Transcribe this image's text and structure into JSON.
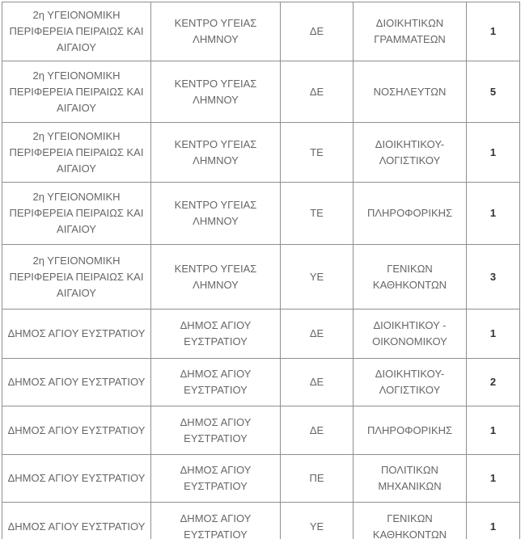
{
  "colors": {
    "background": "#ffffff",
    "border": "#8f8f8f",
    "text": "#666666",
    "count_text": "#333333"
  },
  "table": {
    "column_keys": [
      "region",
      "body",
      "category",
      "specialty",
      "count"
    ],
    "rows": [
      {
        "region": "2η ΥΓΕΙΟΝΟΜΙΚΗ ΠΕΡΙΦΕΡΕΙΑ ΠΕΙΡΑΙΩΣ ΚΑΙ ΑΙΓΑΙΟΥ",
        "body": "ΚΕΝΤΡΟ ΥΓΕΙΑΣ ΛΗΜΝΟΥ",
        "category": "ΔΕ",
        "specialty": "ΔΙΟΙΚΗΤΙΚΩΝ ΓΡΑΜΜΑΤΕΩΝ",
        "count": "1"
      },
      {
        "region": "2η ΥΓΕΙΟΝΟΜΙΚΗ ΠΕΡΙΦΕΡΕΙΑ ΠΕΙΡΑΙΩΣ ΚΑΙ ΑΙΓΑΙΟΥ",
        "body": "ΚΕΝΤΡΟ ΥΓΕΙΑΣ ΛΗΜΝΟΥ",
        "category": "ΔΕ",
        "specialty": "ΝΟΣΗΛΕΥΤΩΝ",
        "count": "5"
      },
      {
        "region": "2η ΥΓΕΙΟΝΟΜΙΚΗ ΠΕΡΙΦΕΡΕΙΑ ΠΕΙΡΑΙΩΣ ΚΑΙ ΑΙΓΑΙΟΥ",
        "body": "ΚΕΝΤΡΟ ΥΓΕΙΑΣ ΛΗΜΝΟΥ",
        "category": "ΤΕ",
        "specialty": "ΔΙΟΙΚΗΤΙΚΟΥ-ΛΟΓΙΣΤΙΚΟΥ",
        "count": "1"
      },
      {
        "region": "2η ΥΓΕΙΟΝΟΜΙΚΗ ΠΕΡΙΦΕΡΕΙΑ ΠΕΙΡΑΙΩΣ ΚΑΙ ΑΙΓΑΙΟΥ",
        "body": "ΚΕΝΤΡΟ ΥΓΕΙΑΣ ΛΗΜΝΟΥ",
        "category": "ΤΕ",
        "specialty": "ΠΛΗΡΟΦΟΡΙΚΗΣ",
        "count": "1"
      },
      {
        "region": "2η ΥΓΕΙΟΝΟΜΙΚΗ ΠΕΡΙΦΕΡΕΙΑ ΠΕΙΡΑΙΩΣ ΚΑΙ ΑΙΓΑΙΟΥ",
        "body": "ΚΕΝΤΡΟ ΥΓΕΙΑΣ ΛΗΜΝΟΥ",
        "category": "ΥΕ",
        "specialty": "ΓΕΝΙΚΩΝ ΚΑΘΗΚΟΝΤΩΝ",
        "count": "3"
      },
      {
        "region": "ΔΗΜΟΣ ΑΓΙΟΥ ΕΥΣΤΡΑΤΙΟΥ",
        "body": "ΔΗΜΟΣ ΑΓΙΟΥ ΕΥΣΤΡΑΤΙΟΥ",
        "category": "ΔΕ",
        "specialty": "ΔΙΟΙΚΗΤΙΚΟΥ - ΟΙΚΟΝΟΜΙΚΟΥ",
        "count": "1"
      },
      {
        "region": "ΔΗΜΟΣ ΑΓΙΟΥ ΕΥΣΤΡΑΤΙΟΥ",
        "body": "ΔΗΜΟΣ ΑΓΙΟΥ ΕΥΣΤΡΑΤΙΟΥ",
        "category": "ΔΕ",
        "specialty": "ΔΙΟΙΚΗΤΙΚΟΥ-ΛΟΓΙΣΤΙΚΟΥ",
        "count": "2"
      },
      {
        "region": "ΔΗΜΟΣ ΑΓΙΟΥ ΕΥΣΤΡΑΤΙΟΥ",
        "body": "ΔΗΜΟΣ ΑΓΙΟΥ ΕΥΣΤΡΑΤΙΟΥ",
        "category": "ΔΕ",
        "specialty": "ΠΛΗΡΟΦΟΡΙΚΗΣ",
        "count": "1"
      },
      {
        "region": "ΔΗΜΟΣ ΑΓΙΟΥ ΕΥΣΤΡΑΤΙΟΥ",
        "body": "ΔΗΜΟΣ ΑΓΙΟΥ ΕΥΣΤΡΑΤΙΟΥ",
        "category": "ΠΕ",
        "specialty": "ΠΟΛΙΤΙΚΩΝ ΜΗΧΑΝΙΚΩΝ",
        "count": "1"
      },
      {
        "region": "ΔΗΜΟΣ ΑΓΙΟΥ ΕΥΣΤΡΑΤΙΟΥ",
        "body": "ΔΗΜΟΣ ΑΓΙΟΥ ΕΥΣΤΡΑΤΙΟΥ",
        "category": "ΥΕ",
        "specialty": "ΓΕΝΙΚΩΝ ΚΑΘΗΚΟΝΤΩΝ",
        "count": "1"
      }
    ]
  }
}
